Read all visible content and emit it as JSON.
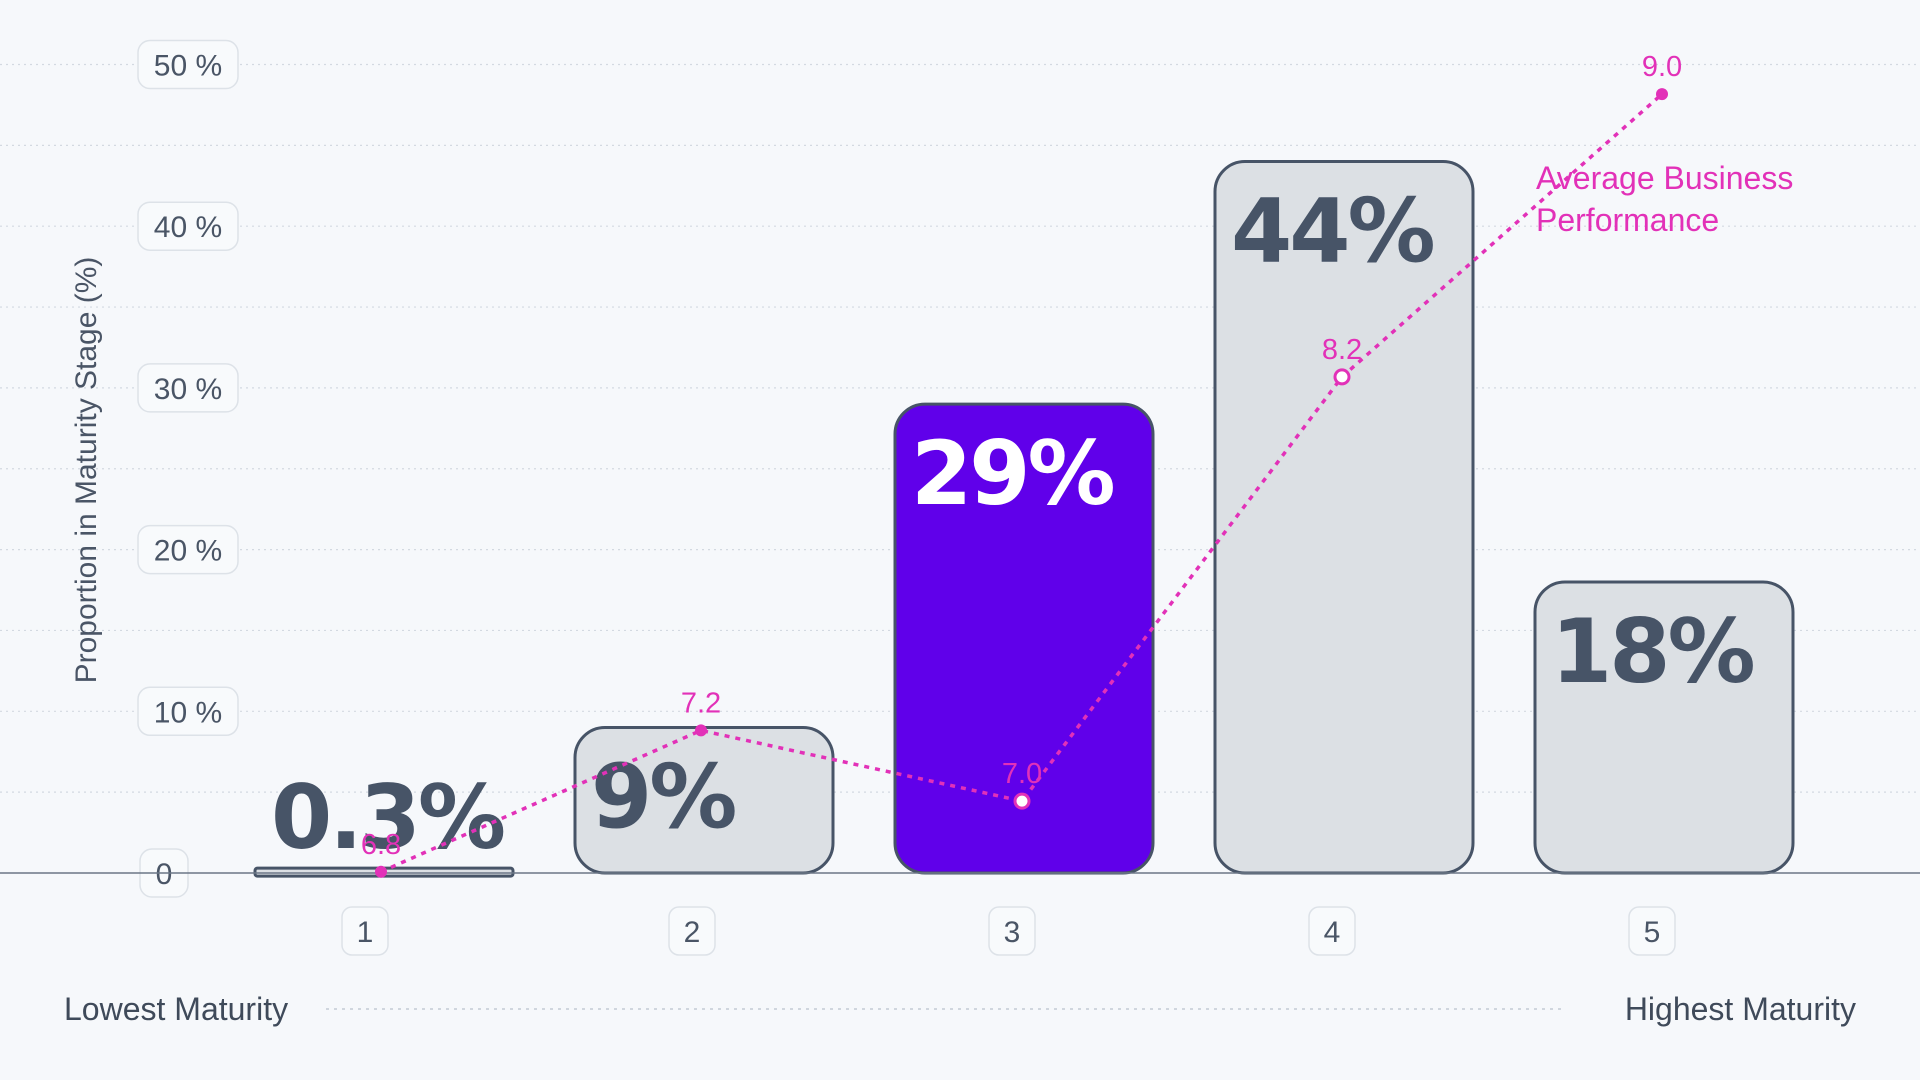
{
  "chart_data": {
    "type": "bar",
    "ylabel": "Proportion in Maturity Stage (%)",
    "xlabel": "",
    "ylim": [
      0,
      50
    ],
    "y_ticks": [
      "0",
      "10 %",
      "20 %",
      "30 %",
      "40 %",
      "50 %"
    ],
    "categories": [
      "1",
      "2",
      "3",
      "4",
      "5"
    ],
    "values": [
      0.3,
      9,
      29,
      44,
      18
    ],
    "bar_labels": [
      "0.3%",
      "9%",
      "29%",
      "44%",
      "18%"
    ],
    "highlight_index": 2,
    "line_series": {
      "name": "Average Business Performance",
      "legend_lines": [
        "Average Business",
        "Performance"
      ],
      "values": [
        6.8,
        7.2,
        7.0,
        8.2,
        9.0
      ],
      "labels": [
        "6.8",
        "7.2",
        "7.0",
        "8.2",
        "9.0"
      ],
      "hollow_indices": [
        2,
        3
      ]
    },
    "axis_extremes": {
      "low": "Lowest Maturity",
      "high": "Highest Maturity"
    },
    "legend_position": "top-right",
    "grid": true,
    "colors": {
      "bar_fill": "#dce0e4",
      "bar_highlight": "#6000ea",
      "bar_stroke": "#475467",
      "line": "#e231b8",
      "label_dark": "#475467",
      "label_light": "#ffffff"
    }
  }
}
